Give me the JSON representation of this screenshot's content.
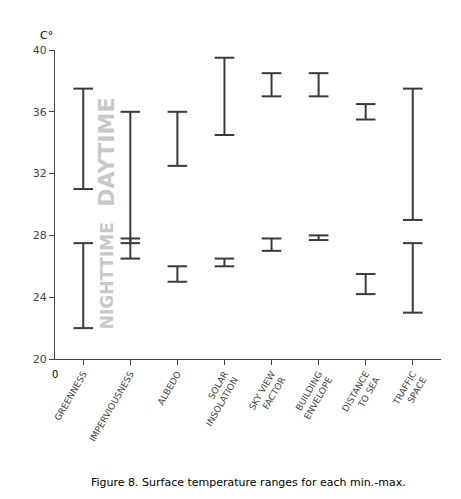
{
  "chart_data": {
    "type": "range",
    "categories": [
      "GREENNESS",
      "IMPERVIOUSNESS",
      "ALBEDO",
      "SOLAR\nINSOLATION",
      "SKY VIEW\nFACTOR",
      "BUILDING\nENVELOPE",
      "DISTANCE\nTO SEA",
      "TRAFFIC\nSPACE"
    ],
    "series": [
      {
        "name": "DAYTIME",
        "color": "#3a3a3a",
        "low": [
          31.0,
          27.5,
          32.5,
          34.5,
          37.0,
          37.0,
          35.5,
          29.0
        ],
        "high": [
          37.5,
          36.0,
          36.0,
          39.5,
          38.5,
          38.5,
          36.5,
          37.5
        ]
      },
      {
        "name": "NIGHTTIME",
        "color": "#3a3a3a",
        "low": [
          22.0,
          26.5,
          25.0,
          26.0,
          27.0,
          27.7,
          24.2,
          23.0
        ],
        "high": [
          27.5,
          27.8,
          26.0,
          26.5,
          27.8,
          28.0,
          25.5,
          27.5
        ]
      }
    ],
    "ylabel": "C°",
    "caption": "Figure 8. Surface temperature ranges for each min.-max.",
    "annotations": [
      "0"
    ],
    "ylim": [
      20,
      40
    ],
    "yticks": [
      20,
      24,
      28,
      32,
      36,
      40
    ],
    "grid": false
  }
}
